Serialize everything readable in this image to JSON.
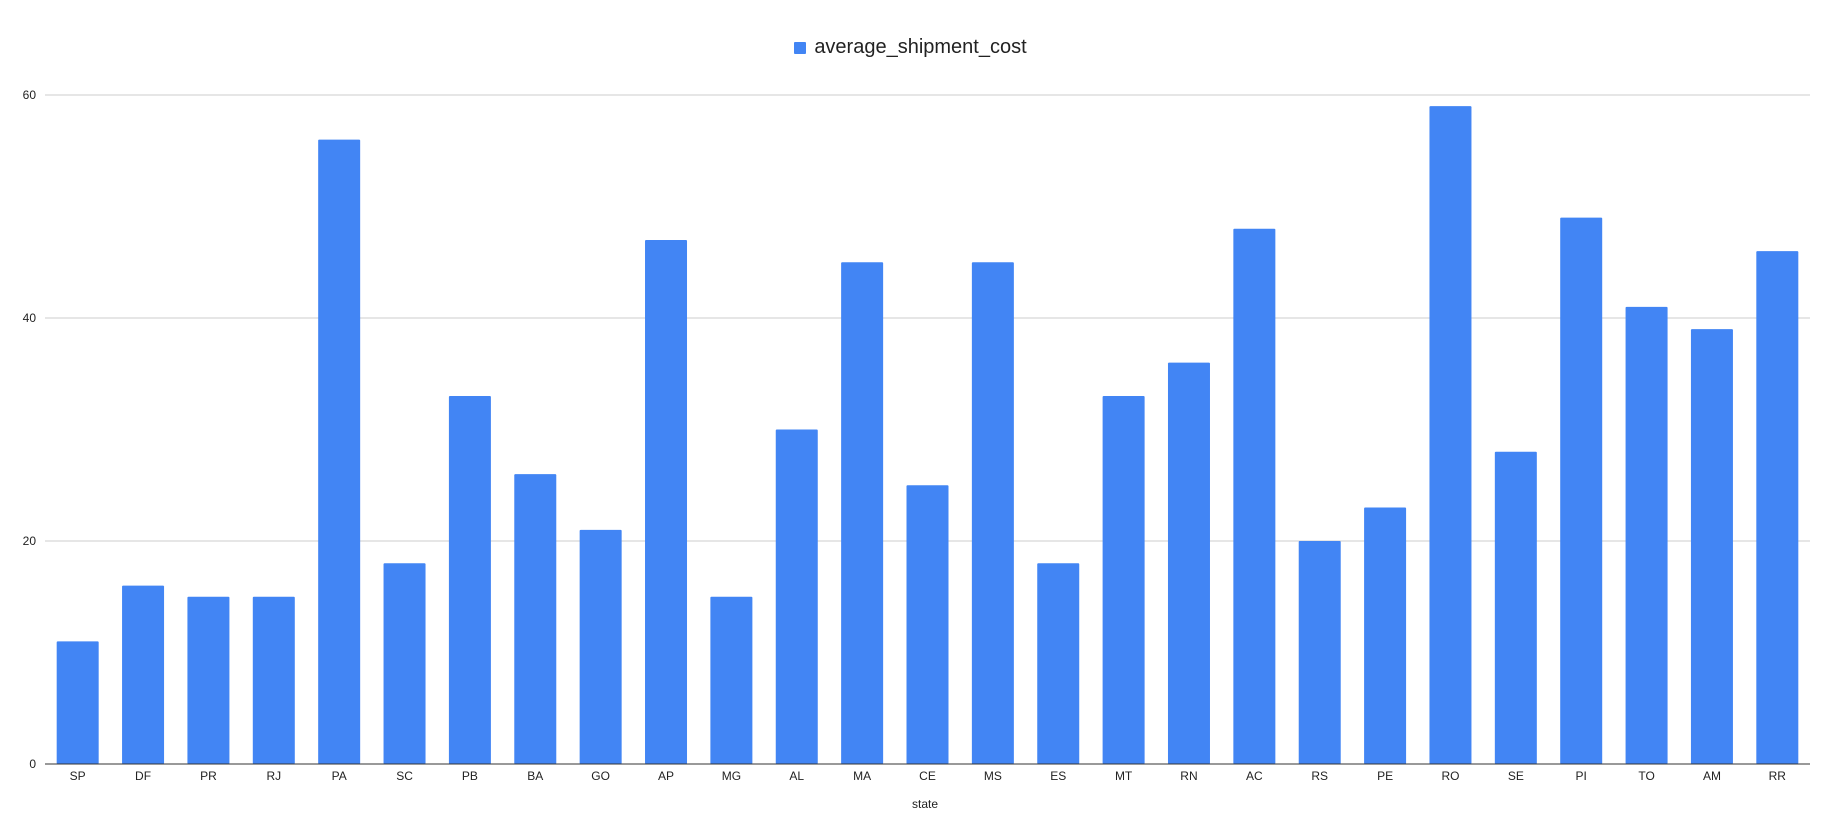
{
  "chart_data": {
    "type": "bar",
    "title": "",
    "xlabel": "state",
    "ylabel": "",
    "ylim": [
      0,
      60
    ],
    "yticks": [
      0,
      20,
      40,
      60
    ],
    "grid": true,
    "legend_position": "top-center",
    "categories": [
      "SP",
      "DF",
      "PR",
      "RJ",
      "PA",
      "SC",
      "PB",
      "BA",
      "GO",
      "AP",
      "MG",
      "AL",
      "MA",
      "CE",
      "MS",
      "ES",
      "MT",
      "RN",
      "AC",
      "RS",
      "PE",
      "RO",
      "SE",
      "PI",
      "TO",
      "AM",
      "RR"
    ],
    "series": [
      {
        "name": "average_shipment_cost",
        "color": "#4285f4",
        "values": [
          11,
          16,
          15,
          15,
          56,
          18,
          33,
          26,
          21,
          47,
          15,
          30,
          45,
          25,
          45,
          18,
          33,
          36,
          48,
          20,
          23,
          59,
          28,
          49,
          41,
          39,
          46
        ]
      }
    ]
  }
}
